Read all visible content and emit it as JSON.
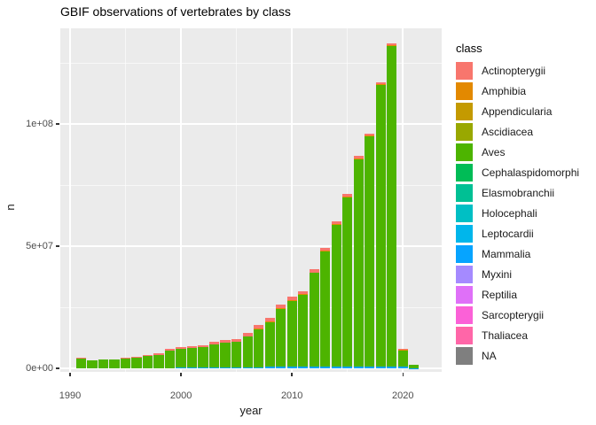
{
  "colors": {
    "panel_bg": "#EBEBEB",
    "grid_major": "#FFFFFF",
    "tick_text": "#4D4D4D",
    "axis_title_text": "#1A1A1A",
    "title_text": "#000000"
  },
  "chart_data": {
    "type": "bar",
    "stacked": true,
    "title": "GBIF observations of vertebrates by class",
    "xlabel": "year",
    "ylabel": "n",
    "x": [
      1991,
      1992,
      1993,
      1994,
      1995,
      1996,
      1997,
      1998,
      1999,
      2000,
      2001,
      2002,
      2003,
      2004,
      2005,
      2006,
      2007,
      2008,
      2009,
      2010,
      2011,
      2012,
      2013,
      2014,
      2015,
      2016,
      2017,
      2018,
      2019,
      2020,
      2021
    ],
    "series": [
      {
        "name": "Actinopterygii",
        "values": [
          300000,
          250000,
          300000,
          300000,
          350000,
          400000,
          400000,
          450000,
          700000,
          800000,
          800000,
          900000,
          900000,
          1000000,
          1100000,
          1200000,
          1300000,
          1400000,
          1500000,
          1500000,
          1200000,
          1300000,
          1200000,
          1200000,
          1200000,
          1000000,
          1000000,
          900000,
          900000,
          300000,
          50000
        ]
      },
      {
        "name": "Amphibia",
        "values": [
          0,
          0,
          0,
          0,
          0,
          0,
          0,
          0,
          0,
          0,
          0,
          0,
          0,
          200000,
          200000,
          200000,
          300000,
          300000,
          300000,
          300000,
          300000,
          300000,
          300000,
          300000,
          300000,
          300000,
          300000,
          300000,
          300000,
          100000,
          0
        ]
      },
      {
        "name": "Aves",
        "values": [
          3900000,
          3150000,
          3500000,
          3500000,
          3950000,
          4400000,
          5100000,
          5550000,
          7100000,
          7600000,
          7800000,
          8300000,
          9500000,
          9900000,
          10200000,
          12500000,
          15600000,
          18400000,
          23600000,
          27000000,
          29400000,
          38100000,
          47000000,
          57900000,
          69000000,
          84600000,
          94000000,
          115100000,
          131100000,
          6700000,
          1300000
        ]
      },
      {
        "name": "Mammalia",
        "values": [
          0,
          0,
          0,
          0,
          0,
          0,
          0,
          0,
          0,
          400000,
          400000,
          400000,
          400000,
          500000,
          500000,
          500000,
          500000,
          600000,
          700000,
          700000,
          800000,
          900000,
          900000,
          900000,
          900000,
          900000,
          900000,
          900000,
          800000,
          700000,
          50000
        ]
      }
    ],
    "stack_order_bottom_to_top": [
      "Mammalia",
      "Aves",
      "Amphibia",
      "Actinopterygii"
    ],
    "x_ticks": [
      {
        "value": 1990,
        "label": "1990"
      },
      {
        "value": 2000,
        "label": "2000"
      },
      {
        "value": 2010,
        "label": "2010"
      },
      {
        "value": 2020,
        "label": "2020"
      }
    ],
    "x_minor": [
      1995,
      2005,
      2015
    ],
    "y_ticks": [
      {
        "value": 0,
        "label": "0e+00"
      },
      {
        "value": 50000000,
        "label": "5e+07"
      },
      {
        "value": 100000000,
        "label": "1e+08"
      }
    ],
    "y_minor": [
      25000000,
      75000000,
      125000000
    ],
    "ylim": [
      0,
      139000000
    ],
    "grid": true,
    "legend": {
      "title": "class",
      "position": "right",
      "entries": [
        {
          "label": "Actinopterygii",
          "color": "#F8766D"
        },
        {
          "label": "Amphibia",
          "color": "#E38900"
        },
        {
          "label": "Appendicularia",
          "color": "#C49A00"
        },
        {
          "label": "Ascidiacea",
          "color": "#99A800"
        },
        {
          "label": "Aves",
          "color": "#4DB400"
        },
        {
          "label": "Cephalaspidomorphi",
          "color": "#00BC56"
        },
        {
          "label": "Elasmobranchii",
          "color": "#00C094"
        },
        {
          "label": "Holocephali",
          "color": "#00BFC4"
        },
        {
          "label": "Leptocardii",
          "color": "#00B6EB"
        },
        {
          "label": "Mammalia",
          "color": "#06A4FF"
        },
        {
          "label": "Myxini",
          "color": "#A58AFF"
        },
        {
          "label": "Reptilia",
          "color": "#DF70F8"
        },
        {
          "label": "Sarcopterygii",
          "color": "#FB61D7"
        },
        {
          "label": "Thaliacea",
          "color": "#FF66A8"
        },
        {
          "label": "NA",
          "color": "#7F7F7F"
        }
      ]
    }
  }
}
